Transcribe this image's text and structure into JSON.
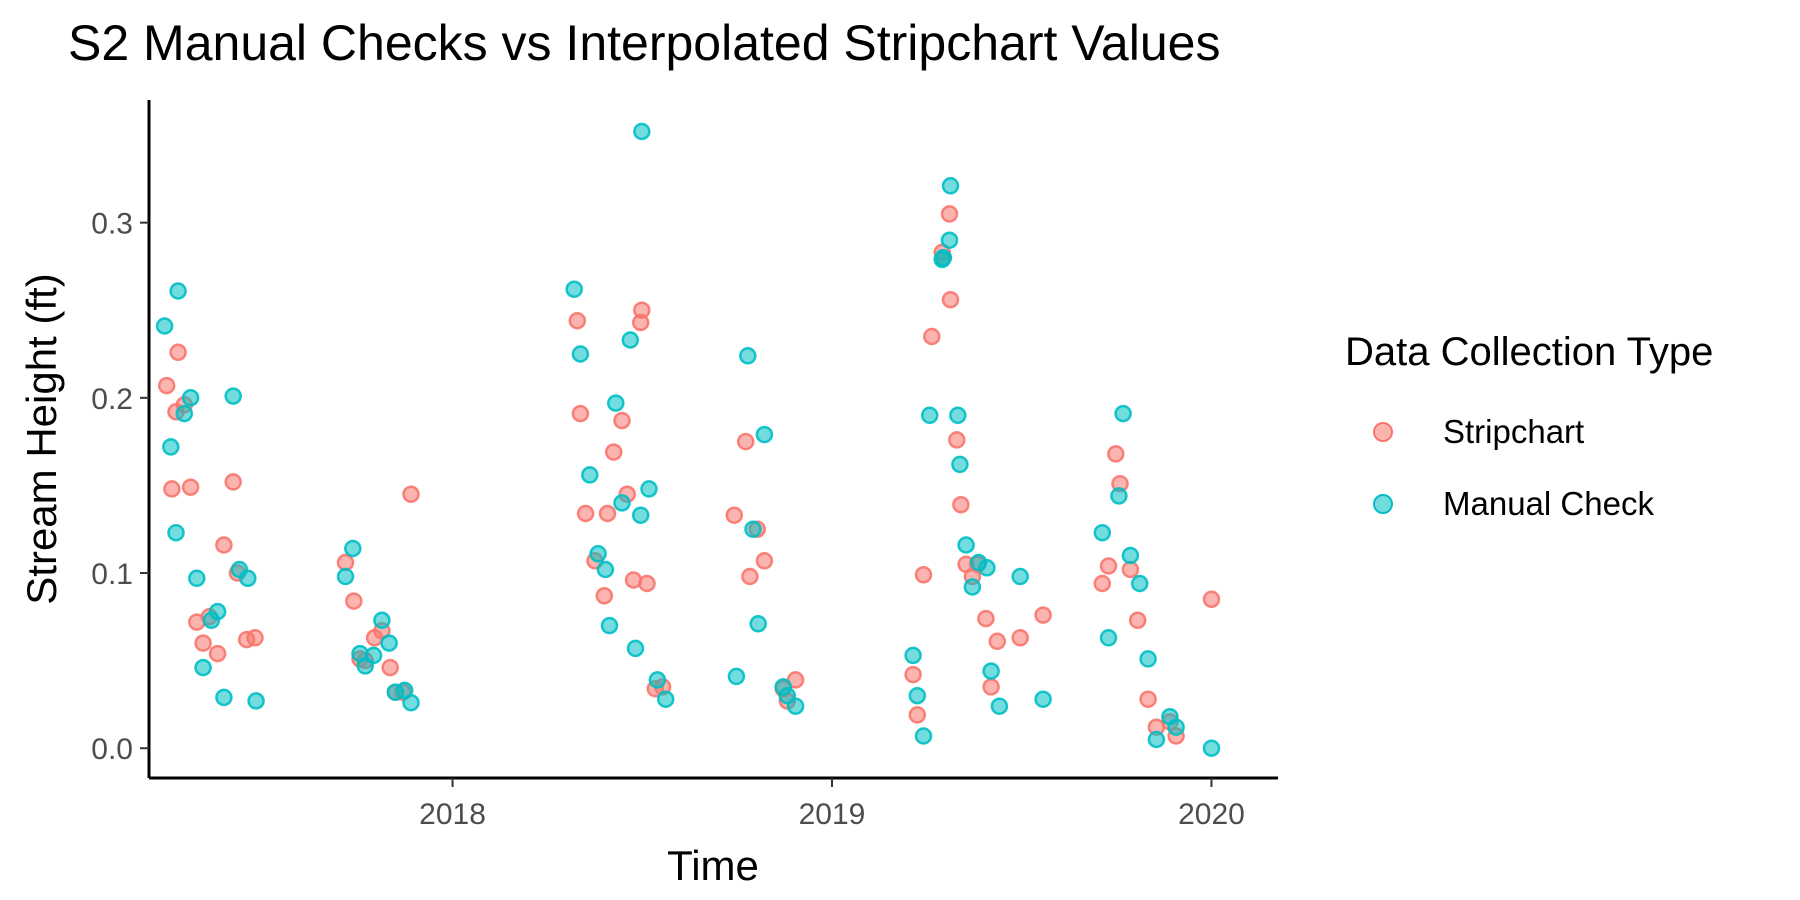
{
  "chart_data": {
    "type": "scatter",
    "title": "S2 Manual Checks vs Interpolated Stripchart Values",
    "xlabel": "Time",
    "ylabel": "Stream Height (ft)",
    "xlim": [
      "2017-03-15",
      "2020-03-05"
    ],
    "ylim": [
      -0.017,
      0.37
    ],
    "x_ticks": [
      "2018-01-01",
      "2019-01-01",
      "2020-01-01"
    ],
    "x_tick_labels": [
      "2018",
      "2019",
      "2020"
    ],
    "y_ticks": [
      0.0,
      0.1,
      0.2,
      0.3
    ],
    "y_tick_labels": [
      "0.0",
      "0.1",
      "0.2",
      "0.3"
    ],
    "grid": false,
    "legend_title": "Data Collection Type",
    "legend_position": "right",
    "series": [
      {
        "name": "Stripchart",
        "color": "#F8766D",
        "points": [
          [
            "2017-04-01",
            0.207
          ],
          [
            "2017-04-06",
            0.148
          ],
          [
            "2017-04-10",
            0.192
          ],
          [
            "2017-04-12",
            0.226
          ],
          [
            "2017-04-18",
            0.196
          ],
          [
            "2017-04-24",
            0.149
          ],
          [
            "2017-04-30",
            0.072
          ],
          [
            "2017-05-06",
            0.06
          ],
          [
            "2017-05-12",
            0.075
          ],
          [
            "2017-05-20",
            0.054
          ],
          [
            "2017-05-26",
            0.116
          ],
          [
            "2017-06-04",
            0.152
          ],
          [
            "2017-06-08",
            0.1
          ],
          [
            "2017-06-17",
            0.062
          ],
          [
            "2017-06-25",
            0.063
          ],
          [
            "2017-09-20",
            0.106
          ],
          [
            "2017-09-28",
            0.084
          ],
          [
            "2017-10-04",
            0.051
          ],
          [
            "2017-10-09",
            0.05
          ],
          [
            "2017-10-18",
            0.063
          ],
          [
            "2017-10-25",
            0.067
          ],
          [
            "2017-11-02",
            0.046
          ],
          [
            "2017-11-07",
            0.032
          ],
          [
            "2017-11-14",
            0.032
          ],
          [
            "2017-11-22",
            0.145
          ],
          [
            "2018-05-01",
            0.244
          ],
          [
            "2018-05-04",
            0.191
          ],
          [
            "2018-05-09",
            0.134
          ],
          [
            "2018-05-18",
            0.107
          ],
          [
            "2018-05-27",
            0.087
          ],
          [
            "2018-05-30",
            0.134
          ],
          [
            "2018-06-05",
            0.169
          ],
          [
            "2018-06-13",
            0.187
          ],
          [
            "2018-06-18",
            0.145
          ],
          [
            "2018-06-24",
            0.096
          ],
          [
            "2018-07-01",
            0.243
          ],
          [
            "2018-07-02",
            0.25
          ],
          [
            "2018-07-07",
            0.094
          ],
          [
            "2018-07-15",
            0.034
          ],
          [
            "2018-07-22",
            0.035
          ],
          [
            "2018-09-29",
            0.133
          ],
          [
            "2018-10-10",
            0.175
          ],
          [
            "2018-10-14",
            0.098
          ],
          [
            "2018-10-21",
            0.125
          ],
          [
            "2018-10-28",
            0.107
          ],
          [
            "2018-11-15",
            0.034
          ],
          [
            "2018-11-19",
            0.027
          ],
          [
            "2018-11-27",
            0.039
          ],
          [
            "2019-03-20",
            0.042
          ],
          [
            "2019-03-24",
            0.019
          ],
          [
            "2019-03-30",
            0.099
          ],
          [
            "2019-04-07",
            0.235
          ],
          [
            "2019-04-17",
            0.283
          ],
          [
            "2019-04-18",
            0.28
          ],
          [
            "2019-04-24",
            0.305
          ],
          [
            "2019-04-25",
            0.256
          ],
          [
            "2019-05-01",
            0.176
          ],
          [
            "2019-05-05",
            0.139
          ],
          [
            "2019-05-10",
            0.105
          ],
          [
            "2019-05-16",
            0.098
          ],
          [
            "2019-05-21",
            0.105
          ],
          [
            "2019-05-29",
            0.074
          ],
          [
            "2019-06-03",
            0.035
          ],
          [
            "2019-06-09",
            0.061
          ],
          [
            "2019-07-01",
            0.063
          ],
          [
            "2019-07-23",
            0.076
          ],
          [
            "2019-09-18",
            0.094
          ],
          [
            "2019-09-24",
            0.104
          ],
          [
            "2019-10-01",
            0.168
          ],
          [
            "2019-10-05",
            0.151
          ],
          [
            "2019-10-15",
            0.102
          ],
          [
            "2019-10-22",
            0.073
          ],
          [
            "2019-11-01",
            0.028
          ],
          [
            "2019-11-09",
            0.012
          ],
          [
            "2019-11-22",
            0.015
          ],
          [
            "2019-11-28",
            0.007
          ],
          [
            "2020-01-01",
            0.085
          ]
        ]
      },
      {
        "name": "Manual Check",
        "color": "#00BFC4",
        "points": [
          [
            "2017-03-30",
            0.241
          ],
          [
            "2017-04-05",
            0.172
          ],
          [
            "2017-04-10",
            0.123
          ],
          [
            "2017-04-12",
            0.261
          ],
          [
            "2017-04-18",
            0.191
          ],
          [
            "2017-04-24",
            0.2
          ],
          [
            "2017-04-30",
            0.097
          ],
          [
            "2017-05-06",
            0.046
          ],
          [
            "2017-05-14",
            0.073
          ],
          [
            "2017-05-20",
            0.078
          ],
          [
            "2017-05-26",
            0.029
          ],
          [
            "2017-06-04",
            0.201
          ],
          [
            "2017-06-10",
            0.102
          ],
          [
            "2017-06-18",
            0.097
          ],
          [
            "2017-06-26",
            0.027
          ],
          [
            "2017-09-20",
            0.098
          ],
          [
            "2017-09-27",
            0.114
          ],
          [
            "2017-10-04",
            0.054
          ],
          [
            "2017-10-09",
            0.047
          ],
          [
            "2017-10-17",
            0.053
          ],
          [
            "2017-10-25",
            0.073
          ],
          [
            "2017-11-01",
            0.06
          ],
          [
            "2017-11-07",
            0.032
          ],
          [
            "2017-11-16",
            0.033
          ],
          [
            "2017-11-22",
            0.026
          ],
          [
            "2018-04-28",
            0.262
          ],
          [
            "2018-05-04",
            0.225
          ],
          [
            "2018-05-13",
            0.156
          ],
          [
            "2018-05-21",
            0.111
          ],
          [
            "2018-05-28",
            0.102
          ],
          [
            "2018-06-01",
            0.07
          ],
          [
            "2018-06-07",
            0.197
          ],
          [
            "2018-06-13",
            0.14
          ],
          [
            "2018-06-21",
            0.233
          ],
          [
            "2018-06-26",
            0.057
          ],
          [
            "2018-07-01",
            0.133
          ],
          [
            "2018-07-02",
            0.352
          ],
          [
            "2018-07-09",
            0.148
          ],
          [
            "2018-07-17",
            0.039
          ],
          [
            "2018-07-25",
            0.028
          ],
          [
            "2018-10-01",
            0.041
          ],
          [
            "2018-10-12",
            0.224
          ],
          [
            "2018-10-17",
            0.125
          ],
          [
            "2018-10-22",
            0.071
          ],
          [
            "2018-10-28",
            0.179
          ],
          [
            "2018-11-15",
            0.035
          ],
          [
            "2018-11-19",
            0.03
          ],
          [
            "2018-11-27",
            0.024
          ],
          [
            "2019-03-20",
            0.053
          ],
          [
            "2019-03-24",
            0.03
          ],
          [
            "2019-03-30",
            0.007
          ],
          [
            "2019-04-05",
            0.19
          ],
          [
            "2019-04-17",
            0.279
          ],
          [
            "2019-04-18",
            0.28
          ],
          [
            "2019-04-24",
            0.29
          ],
          [
            "2019-04-25",
            0.321
          ],
          [
            "2019-05-02",
            0.19
          ],
          [
            "2019-05-04",
            0.162
          ],
          [
            "2019-05-10",
            0.116
          ],
          [
            "2019-05-16",
            0.092
          ],
          [
            "2019-05-22",
            0.106
          ],
          [
            "2019-05-30",
            0.103
          ],
          [
            "2019-06-03",
            0.044
          ],
          [
            "2019-06-11",
            0.024
          ],
          [
            "2019-07-01",
            0.098
          ],
          [
            "2019-07-23",
            0.028
          ],
          [
            "2019-09-18",
            0.123
          ],
          [
            "2019-09-24",
            0.063
          ],
          [
            "2019-10-04",
            0.144
          ],
          [
            "2019-10-08",
            0.191
          ],
          [
            "2019-10-15",
            0.11
          ],
          [
            "2019-10-24",
            0.094
          ],
          [
            "2019-11-01",
            0.051
          ],
          [
            "2019-11-09",
            0.005
          ],
          [
            "2019-11-22",
            0.018
          ],
          [
            "2019-11-28",
            0.012
          ],
          [
            "2020-01-01",
            0.0
          ]
        ]
      }
    ]
  }
}
